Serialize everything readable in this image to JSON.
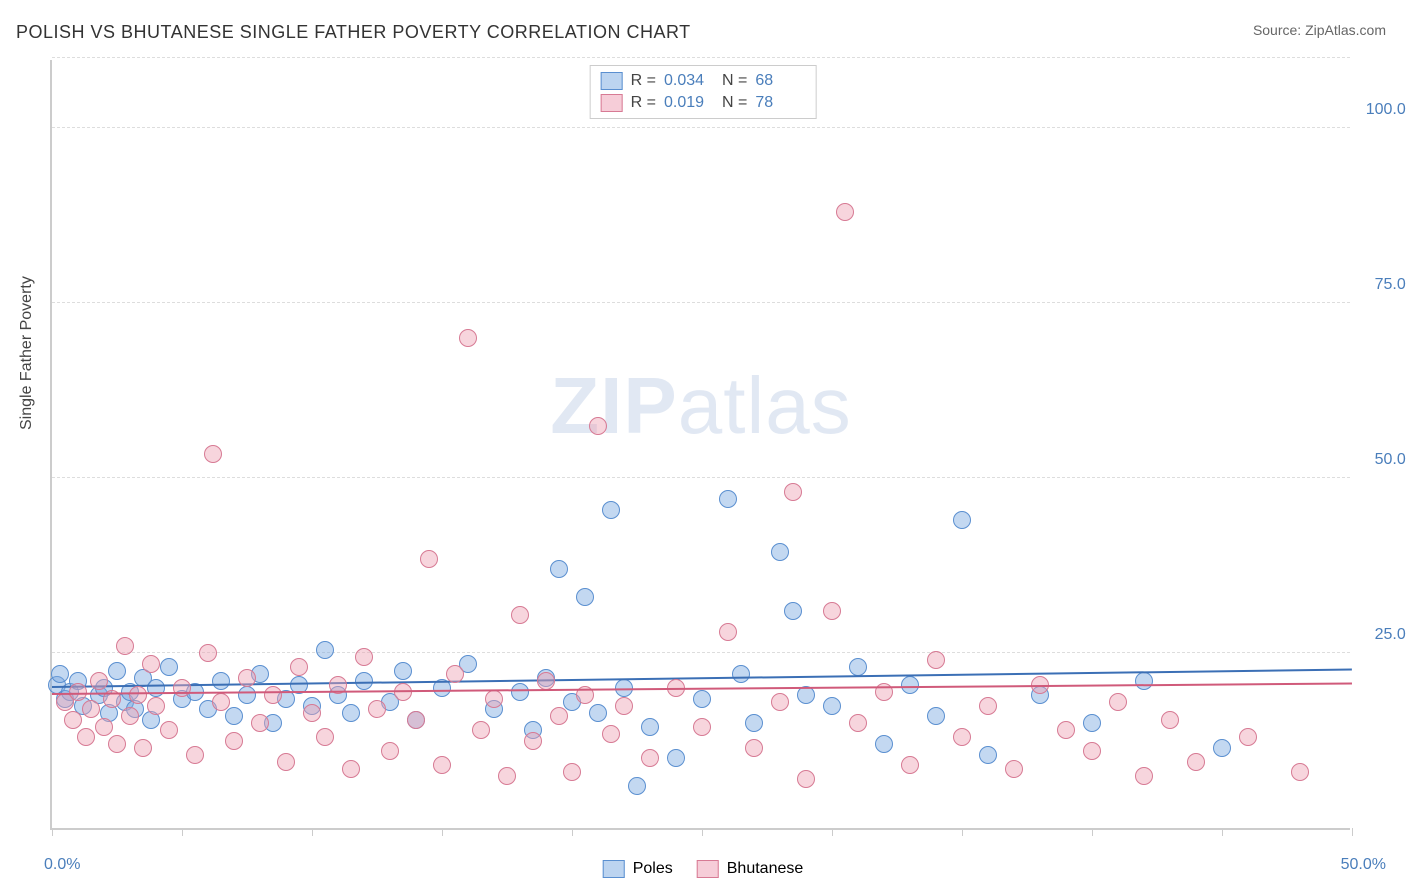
{
  "title": "POLISH VS BHUTANESE SINGLE FATHER POVERTY CORRELATION CHART",
  "source_label": "Source:",
  "source_value": "ZipAtlas.com",
  "y_axis_title": "Single Father Poverty",
  "watermark": {
    "bold": "ZIP",
    "rest": "atlas"
  },
  "chart": {
    "type": "scatter",
    "xlim": [
      0,
      50
    ],
    "ylim": [
      0,
      110
    ],
    "x_ticks": [
      0,
      5,
      10,
      15,
      20,
      25,
      30,
      35,
      40,
      45,
      50
    ],
    "x_tick_labels": {
      "min": "0.0%",
      "max": "50.0%"
    },
    "y_gridlines": [
      25,
      50,
      75,
      100,
      110
    ],
    "y_tick_labels": [
      {
        "v": 25,
        "t": "25.0%"
      },
      {
        "v": 50,
        "t": "50.0%"
      },
      {
        "v": 75,
        "t": "75.0%"
      },
      {
        "v": 100,
        "t": "100.0%"
      }
    ],
    "background_color": "#ffffff",
    "grid_color": "#dddddd",
    "axis_color": "#cccccc",
    "tick_label_color": "#4a7ebb",
    "marker_radius": 9,
    "marker_border_width": 1.5,
    "series": [
      {
        "id": "poles",
        "label": "Poles",
        "fill": "rgba(122,168,224,0.45)",
        "stroke": "#5a8fd0",
        "swatch_fill": "#bcd4f0",
        "swatch_stroke": "#5a8fd0",
        "R_label": "R =",
        "R_value": "0.034",
        "N_label": "N =",
        "N_value": "68",
        "trend": {
          "y_at_x0": 20.0,
          "y_at_x50": 22.5,
          "color": "#3b6fb5",
          "width": 2
        },
        "points": [
          [
            0.2,
            20.5
          ],
          [
            0.3,
            22.0
          ],
          [
            0.5,
            18.5
          ],
          [
            0.7,
            19.5
          ],
          [
            1.0,
            21.0
          ],
          [
            1.2,
            17.5
          ],
          [
            1.8,
            19.0
          ],
          [
            2.0,
            20.0
          ],
          [
            2.2,
            16.5
          ],
          [
            2.5,
            22.5
          ],
          [
            2.8,
            18.0
          ],
          [
            3.0,
            19.5
          ],
          [
            3.2,
            17.0
          ],
          [
            3.5,
            21.5
          ],
          [
            3.8,
            15.5
          ],
          [
            4.0,
            20.0
          ],
          [
            4.5,
            23.0
          ],
          [
            5.0,
            18.5
          ],
          [
            5.5,
            19.5
          ],
          [
            6.0,
            17.0
          ],
          [
            6.5,
            21.0
          ],
          [
            7.0,
            16.0
          ],
          [
            7.5,
            19.0
          ],
          [
            8.0,
            22.0
          ],
          [
            8.5,
            15.0
          ],
          [
            9.0,
            18.5
          ],
          [
            9.5,
            20.5
          ],
          [
            10.0,
            17.5
          ],
          [
            10.5,
            25.5
          ],
          [
            11.0,
            19.0
          ],
          [
            11.5,
            16.5
          ],
          [
            12.0,
            21.0
          ],
          [
            13.0,
            18.0
          ],
          [
            13.5,
            22.5
          ],
          [
            14.0,
            15.5
          ],
          [
            15.0,
            20.0
          ],
          [
            16.0,
            23.5
          ],
          [
            17.0,
            17.0
          ],
          [
            18.0,
            19.5
          ],
          [
            18.5,
            14.0
          ],
          [
            19.0,
            21.5
          ],
          [
            19.5,
            37.0
          ],
          [
            20.0,
            18.0
          ],
          [
            20.5,
            33.0
          ],
          [
            21.0,
            16.5
          ],
          [
            21.5,
            45.5
          ],
          [
            22.0,
            20.0
          ],
          [
            22.5,
            6.0
          ],
          [
            23.0,
            14.5
          ],
          [
            24.0,
            10.0
          ],
          [
            25.0,
            18.5
          ],
          [
            26.0,
            47.0
          ],
          [
            26.5,
            22.0
          ],
          [
            27.0,
            15.0
          ],
          [
            28.0,
            39.5
          ],
          [
            28.5,
            31.0
          ],
          [
            29.0,
            19.0
          ],
          [
            30.0,
            17.5
          ],
          [
            31.0,
            23.0
          ],
          [
            32.0,
            12.0
          ],
          [
            33.0,
            20.5
          ],
          [
            34.0,
            16.0
          ],
          [
            35.0,
            44.0
          ],
          [
            36.0,
            10.5
          ],
          [
            38.0,
            19.0
          ],
          [
            40.0,
            15.0
          ],
          [
            42.0,
            21.0
          ],
          [
            45.0,
            11.5
          ]
        ]
      },
      {
        "id": "bhutanese",
        "label": "Bhutanese",
        "fill": "rgba(238,162,180,0.45)",
        "stroke": "#d77a94",
        "swatch_fill": "#f6cdd8",
        "swatch_stroke": "#d77a94",
        "R_label": "R =",
        "R_value": "0.019",
        "N_label": "N =",
        "N_value": "78",
        "trend": {
          "y_at_x0": 19.0,
          "y_at_x50": 20.5,
          "color": "#d05a7a",
          "width": 2
        },
        "points": [
          [
            0.5,
            18.0
          ],
          [
            0.8,
            15.5
          ],
          [
            1.0,
            19.5
          ],
          [
            1.3,
            13.0
          ],
          [
            1.5,
            17.0
          ],
          [
            1.8,
            21.0
          ],
          [
            2.0,
            14.5
          ],
          [
            2.3,
            18.5
          ],
          [
            2.5,
            12.0
          ],
          [
            2.8,
            26.0
          ],
          [
            3.0,
            16.0
          ],
          [
            3.3,
            19.0
          ],
          [
            3.5,
            11.5
          ],
          [
            3.8,
            23.5
          ],
          [
            4.0,
            17.5
          ],
          [
            4.5,
            14.0
          ],
          [
            5.0,
            20.0
          ],
          [
            5.5,
            10.5
          ],
          [
            6.0,
            25.0
          ],
          [
            6.2,
            53.5
          ],
          [
            6.5,
            18.0
          ],
          [
            7.0,
            12.5
          ],
          [
            7.5,
            21.5
          ],
          [
            8.0,
            15.0
          ],
          [
            8.5,
            19.0
          ],
          [
            9.0,
            9.5
          ],
          [
            9.5,
            23.0
          ],
          [
            10.0,
            16.5
          ],
          [
            10.5,
            13.0
          ],
          [
            11.0,
            20.5
          ],
          [
            11.5,
            8.5
          ],
          [
            12.0,
            24.5
          ],
          [
            12.5,
            17.0
          ],
          [
            13.0,
            11.0
          ],
          [
            13.5,
            19.5
          ],
          [
            14.0,
            15.5
          ],
          [
            14.5,
            38.5
          ],
          [
            15.0,
            9.0
          ],
          [
            15.5,
            22.0
          ],
          [
            16.0,
            70.0
          ],
          [
            16.5,
            14.0
          ],
          [
            17.0,
            18.5
          ],
          [
            17.5,
            7.5
          ],
          [
            18.0,
            30.5
          ],
          [
            18.5,
            12.5
          ],
          [
            19.0,
            21.0
          ],
          [
            19.5,
            16.0
          ],
          [
            20.0,
            8.0
          ],
          [
            20.5,
            19.0
          ],
          [
            21.0,
            57.5
          ],
          [
            21.5,
            13.5
          ],
          [
            22.0,
            17.5
          ],
          [
            23.0,
            10.0
          ],
          [
            24.0,
            20.0
          ],
          [
            25.0,
            14.5
          ],
          [
            26.0,
            28.0
          ],
          [
            27.0,
            11.5
          ],
          [
            28.0,
            18.0
          ],
          [
            28.5,
            48.0
          ],
          [
            29.0,
            7.0
          ],
          [
            30.0,
            31.0
          ],
          [
            30.5,
            88.0
          ],
          [
            31.0,
            15.0
          ],
          [
            32.0,
            19.5
          ],
          [
            33.0,
            9.0
          ],
          [
            34.0,
            24.0
          ],
          [
            35.0,
            13.0
          ],
          [
            36.0,
            17.5
          ],
          [
            37.0,
            8.5
          ],
          [
            38.0,
            20.5
          ],
          [
            39.0,
            14.0
          ],
          [
            40.0,
            11.0
          ],
          [
            41.0,
            18.0
          ],
          [
            42.0,
            7.5
          ],
          [
            43.0,
            15.5
          ],
          [
            44.0,
            9.5
          ],
          [
            46.0,
            13.0
          ],
          [
            48.0,
            8.0
          ]
        ]
      }
    ]
  },
  "series_legend": [
    {
      "label": "Poles",
      "fill": "#bcd4f0",
      "stroke": "#5a8fd0"
    },
    {
      "label": "Bhutanese",
      "fill": "#f6cdd8",
      "stroke": "#d77a94"
    }
  ]
}
